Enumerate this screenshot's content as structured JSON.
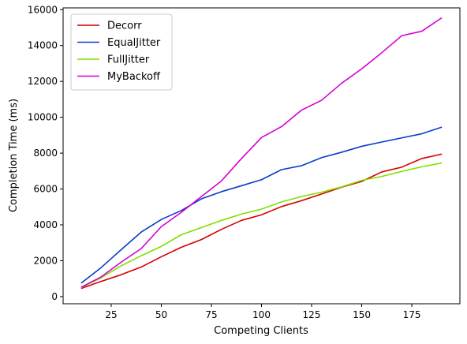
{
  "chart_data": {
    "type": "line",
    "title": "",
    "xlabel": "Competing Clients",
    "ylabel": "Completion Time (ms)",
    "xlim": [
      1,
      199
    ],
    "ylim": [
      -400,
      16100
    ],
    "xticks": [
      25,
      50,
      75,
      100,
      125,
      150,
      175
    ],
    "yticks": [
      0,
      2000,
      4000,
      6000,
      8000,
      10000,
      12000,
      14000,
      16000
    ],
    "grid": false,
    "legend_position": "top-left",
    "x": [
      10,
      20,
      30,
      40,
      50,
      60,
      70,
      80,
      90,
      100,
      110,
      120,
      130,
      140,
      150,
      160,
      170,
      180,
      190
    ],
    "series": [
      {
        "name": "Decorr",
        "color": "#d40000",
        "values": [
          450,
          850,
          1220,
          1650,
          2220,
          2750,
          3180,
          3750,
          4250,
          4560,
          5020,
          5350,
          5720,
          6100,
          6420,
          6950,
          7220,
          7700,
          7950
        ]
      },
      {
        "name": "EqualJitter",
        "color": "#0a3ccc",
        "values": [
          750,
          1620,
          2620,
          3600,
          4300,
          4800,
          5450,
          5850,
          6180,
          6520,
          7080,
          7300,
          7750,
          8050,
          8380,
          8620,
          8850,
          9080,
          9450
        ]
      },
      {
        "name": "FullJitter",
        "color": "#80e000",
        "values": [
          500,
          1050,
          1720,
          2280,
          2800,
          3450,
          3850,
          4250,
          4600,
          4880,
          5280,
          5580,
          5820,
          6120,
          6480,
          6700,
          6980,
          7240,
          7450
        ]
      },
      {
        "name": "MyBackoff",
        "color": "#d400d4",
        "values": [
          520,
          1100,
          1920,
          2680,
          3900,
          4700,
          5580,
          6450,
          7700,
          8870,
          9480,
          10400,
          10950,
          11900,
          12700,
          13600,
          14550,
          14800,
          15550
        ]
      }
    ]
  }
}
